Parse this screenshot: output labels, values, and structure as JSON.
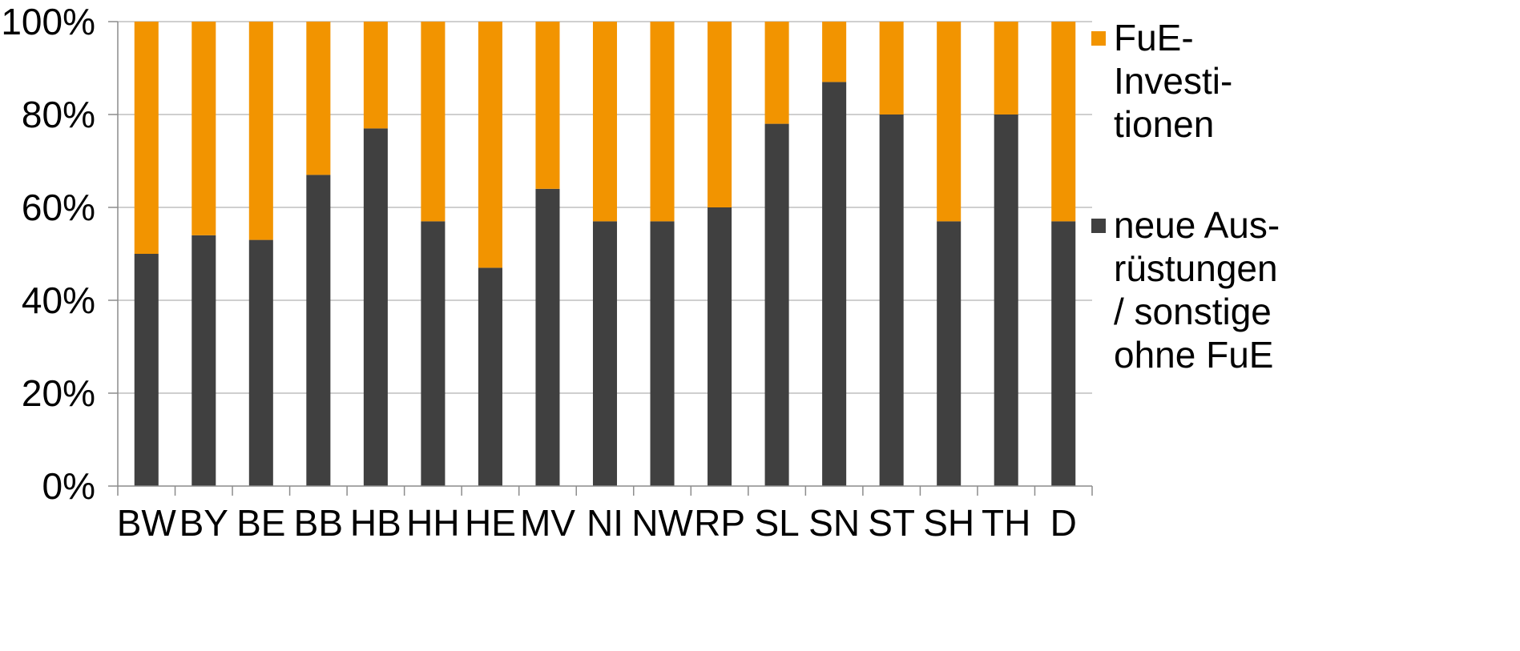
{
  "chart_data": {
    "type": "bar",
    "stacked": true,
    "percent": true,
    "title": "",
    "xlabel": "",
    "ylabel": "",
    "ylim": [
      0,
      100
    ],
    "y_ticks": [
      "0%",
      "20%",
      "40%",
      "60%",
      "80%",
      "100%"
    ],
    "grid": true,
    "legend_position": "right",
    "categories": [
      "BW",
      "BY",
      "BE",
      "BB",
      "HB",
      "HH",
      "HE",
      "MV",
      "NI",
      "NW",
      "RP",
      "SL",
      "SN",
      "ST",
      "SH",
      "TH",
      "D"
    ],
    "series": [
      {
        "name": "neue Ausrüstungen / sonstige ohne FuE",
        "legend_lines": [
          "neue Aus-",
          "rüstungen",
          "/ sonstige",
          "ohne FuE"
        ],
        "color": "#404040",
        "values": [
          50,
          54,
          53,
          67,
          77,
          57,
          47,
          64,
          57,
          57,
          60,
          78,
          87,
          80,
          57,
          80,
          57
        ]
      },
      {
        "name": "FuE-Investitionen",
        "legend_lines": [
          "FuE-",
          "Investi-",
          "tionen"
        ],
        "color": "#f29400",
        "values": [
          50,
          46,
          47,
          33,
          23,
          43,
          53,
          36,
          43,
          43,
          40,
          22,
          13,
          20,
          43,
          20,
          43
        ]
      }
    ]
  }
}
